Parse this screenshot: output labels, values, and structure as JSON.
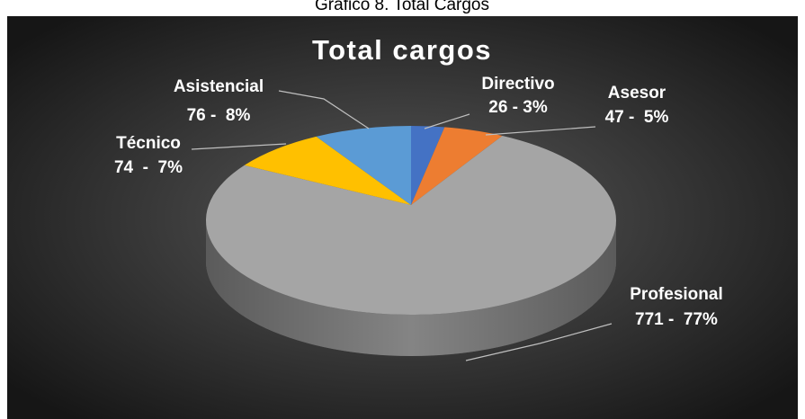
{
  "chart_data": {
    "type": "pie",
    "caption": "Gráfico 8. Total Cargos",
    "title": "Total cargos",
    "categories": [
      "Directivo",
      "Asesor",
      "Profesional",
      "Técnico",
      "Asistencial"
    ],
    "values": [
      26,
      47,
      771,
      74,
      76
    ],
    "value_labels": [
      "26 - 3%",
      "47 -  5%",
      "771 -  77%",
      "74  -  7%",
      "76 -  8%"
    ],
    "colors": [
      "#4472c4",
      "#ed7d31",
      "#a5a5a5",
      "#ffc000",
      "#5b9bd5"
    ]
  }
}
